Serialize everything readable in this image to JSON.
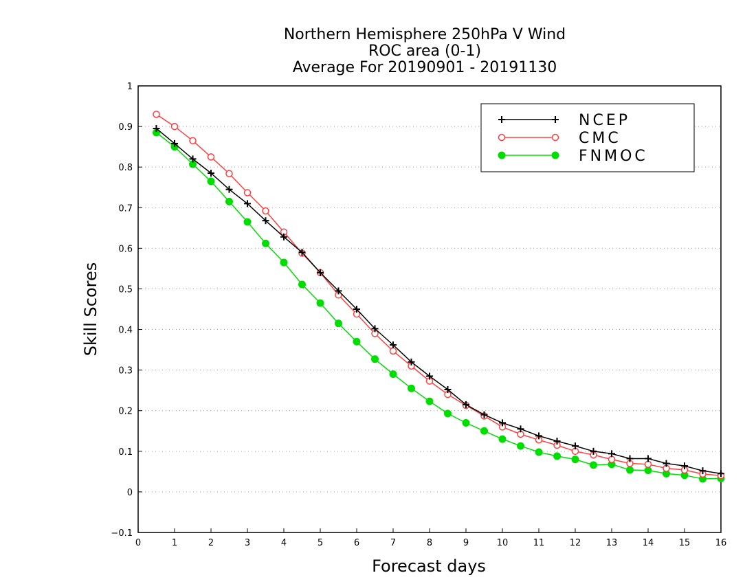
{
  "chart_data": {
    "type": "line",
    "title_lines": [
      "Northern Hemisphere 250hPa V Wind",
      "ROC area (0-1)",
      "Average For 20190901 - 20191130"
    ],
    "xlabel": "Forecast days",
    "ylabel": "Skill Scores",
    "xlim": [
      0,
      16
    ],
    "ylim": [
      -0.1,
      1
    ],
    "x_ticks": [
      0,
      1,
      2,
      3,
      4,
      5,
      6,
      7,
      8,
      9,
      10,
      11,
      12,
      13,
      14,
      15,
      16
    ],
    "y_ticks": [
      -0.1,
      0,
      0.1,
      0.2,
      0.3,
      0.4,
      0.5,
      0.6,
      0.7,
      0.8,
      0.9,
      1
    ],
    "grid": "horizontal dotted",
    "legend_position": "top-right",
    "x": [
      0.5,
      1,
      1.5,
      2,
      2.5,
      3,
      3.5,
      4,
      4.5,
      5,
      5.5,
      6,
      6.5,
      7,
      7.5,
      8,
      8.5,
      9,
      9.5,
      10,
      10.5,
      11,
      11.5,
      12,
      12.5,
      13,
      13.5,
      14,
      14.5,
      15,
      15.5,
      16
    ],
    "series": [
      {
        "name": "NCEP",
        "color": "#000000",
        "marker": "plus",
        "values": [
          0.895,
          0.858,
          0.82,
          0.785,
          0.745,
          0.71,
          0.668,
          0.628,
          0.59,
          0.54,
          0.495,
          0.45,
          0.402,
          0.362,
          0.32,
          0.285,
          0.252,
          0.215,
          0.19,
          0.17,
          0.155,
          0.138,
          0.125,
          0.113,
          0.1,
          0.094,
          0.082,
          0.082,
          0.07,
          0.064,
          0.052,
          0.045
        ]
      },
      {
        "name": "CMC",
        "color": "#ff4040",
        "marker": "open-circle",
        "values": [
          0.93,
          0.9,
          0.865,
          0.825,
          0.784,
          0.737,
          0.692,
          0.64,
          0.588,
          0.54,
          0.485,
          0.438,
          0.39,
          0.347,
          0.31,
          0.273,
          0.24,
          0.213,
          0.187,
          0.16,
          0.142,
          0.128,
          0.115,
          0.1,
          0.091,
          0.08,
          0.07,
          0.068,
          0.058,
          0.054,
          0.044,
          0.04
        ]
      },
      {
        "name": "FNMOC",
        "color": "#00dd00",
        "marker": "filled-circle",
        "values": [
          0.885,
          0.85,
          0.807,
          0.765,
          0.715,
          0.665,
          0.612,
          0.565,
          0.511,
          0.465,
          0.415,
          0.37,
          0.327,
          0.29,
          0.255,
          0.223,
          0.193,
          0.17,
          0.15,
          0.13,
          0.113,
          0.098,
          0.088,
          0.08,
          0.066,
          0.068,
          0.054,
          0.053,
          0.045,
          0.041,
          0.032,
          0.033
        ]
      }
    ]
  }
}
